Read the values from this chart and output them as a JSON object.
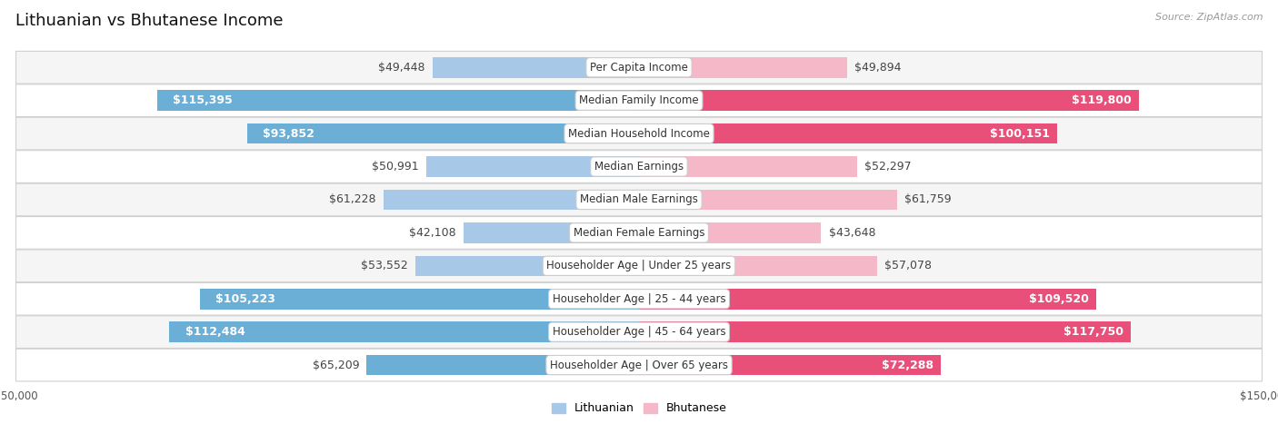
{
  "title": "Lithuanian vs Bhutanese Income",
  "source": "Source: ZipAtlas.com",
  "categories": [
    "Per Capita Income",
    "Median Family Income",
    "Median Household Income",
    "Median Earnings",
    "Median Male Earnings",
    "Median Female Earnings",
    "Householder Age | Under 25 years",
    "Householder Age | 25 - 44 years",
    "Householder Age | 45 - 64 years",
    "Householder Age | Over 65 years"
  ],
  "lithuanian_values": [
    49448,
    115395,
    93852,
    50991,
    61228,
    42108,
    53552,
    105223,
    112484,
    65209
  ],
  "bhutanese_values": [
    49894,
    119800,
    100151,
    52297,
    61759,
    43648,
    57078,
    109520,
    117750,
    72288
  ],
  "lithuanian_labels": [
    "$49,448",
    "$115,395",
    "$93,852",
    "$50,991",
    "$61,228",
    "$42,108",
    "$53,552",
    "$105,223",
    "$112,484",
    "$65,209"
  ],
  "bhutanese_labels": [
    "$49,894",
    "$119,800",
    "$100,151",
    "$52,297",
    "$61,759",
    "$43,648",
    "$57,078",
    "$109,520",
    "$117,750",
    "$72,288"
  ],
  "lith_color_light": "#a8c8e8",
  "lith_color_dark": "#6baed6",
  "bhut_color_light": "#f4b8c8",
  "bhut_color_dark": "#e8507a",
  "inside_threshold": 70000,
  "max_value": 150000,
  "background_color": "#ffffff",
  "row_colors": [
    "#f5f5f5",
    "#ffffff"
  ],
  "row_border_color": "#d0d0d0",
  "title_fontsize": 13,
  "label_fontsize": 9,
  "category_fontsize": 8.5,
  "tick_fontsize": 8.5,
  "legend_fontsize": 9
}
